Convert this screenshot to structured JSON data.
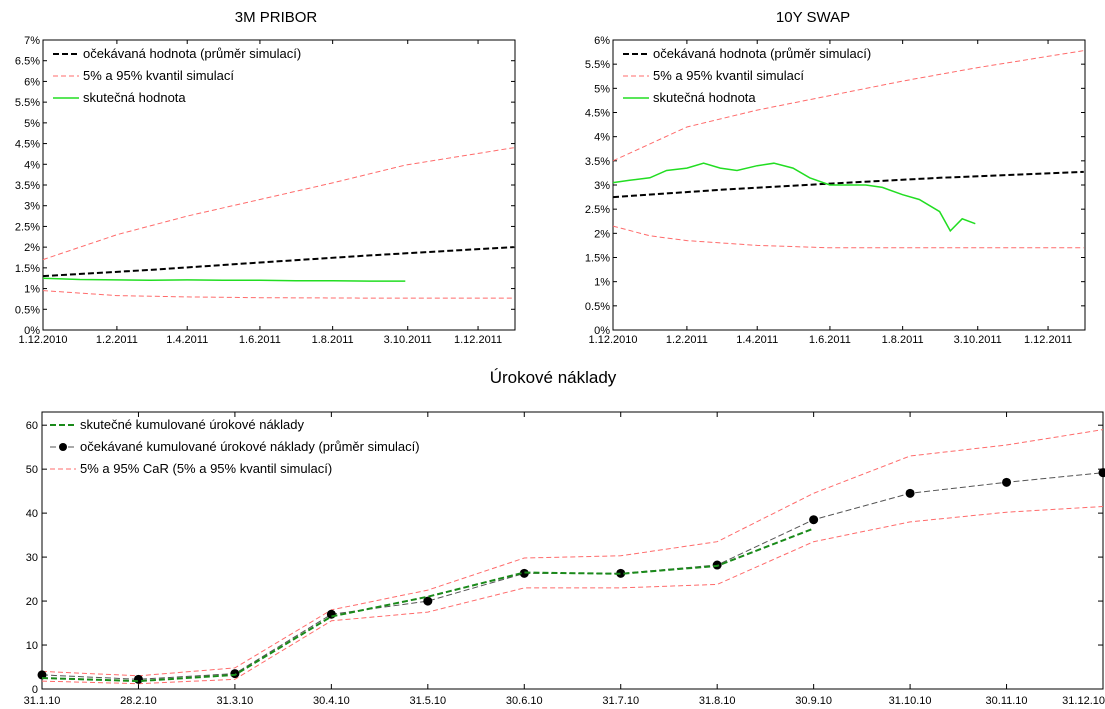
{
  "chart_data": [
    {
      "id": "pribor",
      "type": "line",
      "title": "3M PRIBOR",
      "xlabel": "",
      "ylabel": "",
      "x_range": [
        "2010-12-01",
        "2012-01-01"
      ],
      "x_ticks": [
        {
          "date": "2010-12-01",
          "label": "1.12.2010"
        },
        {
          "date": "2011-02-01",
          "label": "1.2.2011"
        },
        {
          "date": "2011-04-01",
          "label": "1.4.2011"
        },
        {
          "date": "2011-06-01",
          "label": "1.6.2011"
        },
        {
          "date": "2011-08-01",
          "label": "1.8.2011"
        },
        {
          "date": "2011-10-03",
          "label": "3.10.2011"
        },
        {
          "date": "2011-12-01",
          "label": "1.12.2011"
        }
      ],
      "ylim": [
        0,
        7
      ],
      "y_ticks": [
        0,
        0.5,
        1,
        1.5,
        2,
        2.5,
        3,
        3.5,
        4,
        4.5,
        5,
        5.5,
        6,
        6.5,
        7
      ],
      "y_tick_labels": [
        "0%",
        "0.5%",
        "1%",
        "1.5%",
        "2%",
        "2.5%",
        "3%",
        "3.5%",
        "4%",
        "4.5%",
        "5%",
        "5.5%",
        "6%",
        "6.5%",
        "7%"
      ],
      "grid": false,
      "legend_position": "top-left",
      "series": [
        {
          "name": "očekávaná hodnota (průměr simulací)",
          "color": "#000000",
          "dash": "6,3",
          "width": 2,
          "x": [
            "2010-12-01",
            "2011-03-01",
            "2011-06-01",
            "2011-09-01",
            "2011-12-31"
          ],
          "y": [
            1.3,
            1.45,
            1.63,
            1.8,
            2.0
          ]
        },
        {
          "name": "5% a 95% kvantil simulací",
          "color": "#ff6b6b",
          "dash": "5,3",
          "width": 1,
          "x": [
            "2010-12-01",
            "2011-02-01",
            "2011-04-01",
            "2011-06-01",
            "2011-08-01",
            "2011-10-01",
            "2011-12-31"
          ],
          "y": [
            1.7,
            2.3,
            2.75,
            3.15,
            3.55,
            3.98,
            4.4
          ]
        },
        {
          "name": "",
          "color": "#ff6b6b",
          "dash": "5,3",
          "width": 1,
          "x": [
            "2010-12-01",
            "2011-02-01",
            "2011-04-01",
            "2011-06-01",
            "2011-09-01",
            "2011-12-31"
          ],
          "y": [
            0.95,
            0.83,
            0.8,
            0.78,
            0.77,
            0.77
          ]
        },
        {
          "name": "skutečná hodnota",
          "color": "#22dd22",
          "dash": "",
          "width": 1.5,
          "x": [
            "2010-12-01",
            "2011-01-01",
            "2011-02-01",
            "2011-03-01",
            "2011-04-01",
            "2011-05-01",
            "2011-06-01",
            "2011-07-01",
            "2011-08-01",
            "2011-09-01",
            "2011-10-01"
          ],
          "y": [
            1.25,
            1.22,
            1.21,
            1.2,
            1.21,
            1.2,
            1.2,
            1.19,
            1.19,
            1.18,
            1.18
          ]
        }
      ]
    },
    {
      "id": "swap",
      "type": "line",
      "title": "10Y SWAP",
      "xlabel": "",
      "ylabel": "",
      "x_range": [
        "2010-12-01",
        "2012-01-01"
      ],
      "x_ticks": [
        {
          "date": "2010-12-01",
          "label": "1.12.2010"
        },
        {
          "date": "2011-02-01",
          "label": "1.2.2011"
        },
        {
          "date": "2011-04-01",
          "label": "1.4.2011"
        },
        {
          "date": "2011-06-01",
          "label": "1.6.2011"
        },
        {
          "date": "2011-08-01",
          "label": "1.8.2011"
        },
        {
          "date": "2011-10-03",
          "label": "3.10.2011"
        },
        {
          "date": "2011-12-01",
          "label": "1.12.2011"
        }
      ],
      "ylim": [
        0,
        6
      ],
      "y_ticks": [
        0,
        0.5,
        1,
        1.5,
        2,
        2.5,
        3,
        3.5,
        4,
        4.5,
        5,
        5.5,
        6
      ],
      "y_tick_labels": [
        "0%",
        "0.5%",
        "1%",
        "1.5%",
        "2%",
        "2.5%",
        "3%",
        "3.5%",
        "4%",
        "4.5%",
        "5%",
        "5.5%",
        "6%"
      ],
      "grid": false,
      "legend_position": "top-left",
      "series": [
        {
          "name": "očekávaná hodnota (průměr simulací)",
          "color": "#000000",
          "dash": "6,3",
          "width": 2,
          "x": [
            "2010-12-01",
            "2011-03-01",
            "2011-06-01",
            "2011-09-01",
            "2011-12-31"
          ],
          "y": [
            2.75,
            2.9,
            3.03,
            3.15,
            3.27
          ]
        },
        {
          "name": "5% a 95% kvantil simulací",
          "color": "#ff6b6b",
          "dash": "5,3",
          "width": 1,
          "x": [
            "2010-12-01",
            "2011-02-01",
            "2011-04-01",
            "2011-06-01",
            "2011-08-01",
            "2011-10-01",
            "2011-12-31"
          ],
          "y": [
            3.5,
            4.2,
            4.55,
            4.85,
            5.15,
            5.42,
            5.78
          ]
        },
        {
          "name": "",
          "color": "#ff6b6b",
          "dash": "5,3",
          "width": 1,
          "x": [
            "2010-12-01",
            "2011-01-01",
            "2011-02-01",
            "2011-04-01",
            "2011-06-01",
            "2011-09-01",
            "2011-12-31"
          ],
          "y": [
            2.15,
            1.95,
            1.85,
            1.75,
            1.7,
            1.7,
            1.7
          ]
        },
        {
          "name": "skutečná hodnota",
          "color": "#22dd22",
          "dash": "",
          "width": 1.5,
          "x": [
            "2010-12-01",
            "2010-12-15",
            "2011-01-01",
            "2011-01-15",
            "2011-02-01",
            "2011-02-15",
            "2011-03-01",
            "2011-03-15",
            "2011-04-01",
            "2011-04-15",
            "2011-05-01",
            "2011-05-15",
            "2011-06-01",
            "2011-06-15",
            "2011-07-01",
            "2011-07-15",
            "2011-08-01",
            "2011-08-15",
            "2011-09-01",
            "2011-09-10",
            "2011-09-20",
            "2011-10-01"
          ],
          "y": [
            3.05,
            3.1,
            3.15,
            3.3,
            3.35,
            3.45,
            3.35,
            3.3,
            3.4,
            3.45,
            3.35,
            3.15,
            3.0,
            3.0,
            3.0,
            2.95,
            2.8,
            2.7,
            2.45,
            2.05,
            2.3,
            2.2
          ]
        }
      ]
    },
    {
      "id": "naklady",
      "type": "line",
      "title": "Úrokové náklady",
      "xlabel": "",
      "ylabel": "",
      "categories": [
        "31.1.10",
        "28.2.10",
        "31.3.10",
        "30.4.10",
        "31.5.10",
        "30.6.10",
        "31.7.10",
        "31.8.10",
        "30.9.10",
        "31.10.10",
        "30.11.10",
        "31.12.10"
      ],
      "ylim": [
        0,
        63
      ],
      "y_ticks": [
        0,
        10,
        20,
        30,
        40,
        50,
        60
      ],
      "grid": false,
      "legend_position": "top-left",
      "series": [
        {
          "name": "skutečné kumulované úrokové náklady",
          "color": "#1a8a1a",
          "dash": "6,3",
          "width": 2,
          "marker": false,
          "values": [
            2.5,
            1.8,
            3.2,
            16.5,
            21,
            26.5,
            26.2,
            28,
            36.5,
            null,
            null,
            null
          ]
        },
        {
          "name": "očekávané kumulované úrokové náklady (průměr simulací)",
          "color": "#555555",
          "dash": "6,3",
          "width": 1,
          "marker": true,
          "values": [
            3.2,
            2.2,
            3.5,
            17,
            20,
            26.3,
            26.3,
            28.2,
            38.5,
            44.5,
            47,
            49.2
          ]
        },
        {
          "name": "5% a 95% CaR (5% a 95% kvantil simulací)",
          "color": "#ff6b6b",
          "dash": "5,3",
          "width": 1,
          "marker": false,
          "values": [
            4,
            3,
            4.8,
            18,
            22.5,
            29.8,
            30.3,
            33.5,
            44.5,
            53,
            55.5,
            59
          ]
        },
        {
          "name": "",
          "color": "#ff6b6b",
          "dash": "5,3",
          "width": 1,
          "marker": false,
          "values": [
            1.8,
            1.2,
            2.2,
            15.5,
            17.5,
            23,
            23,
            23.8,
            33.5,
            38,
            40.2,
            41.5
          ]
        }
      ]
    }
  ]
}
